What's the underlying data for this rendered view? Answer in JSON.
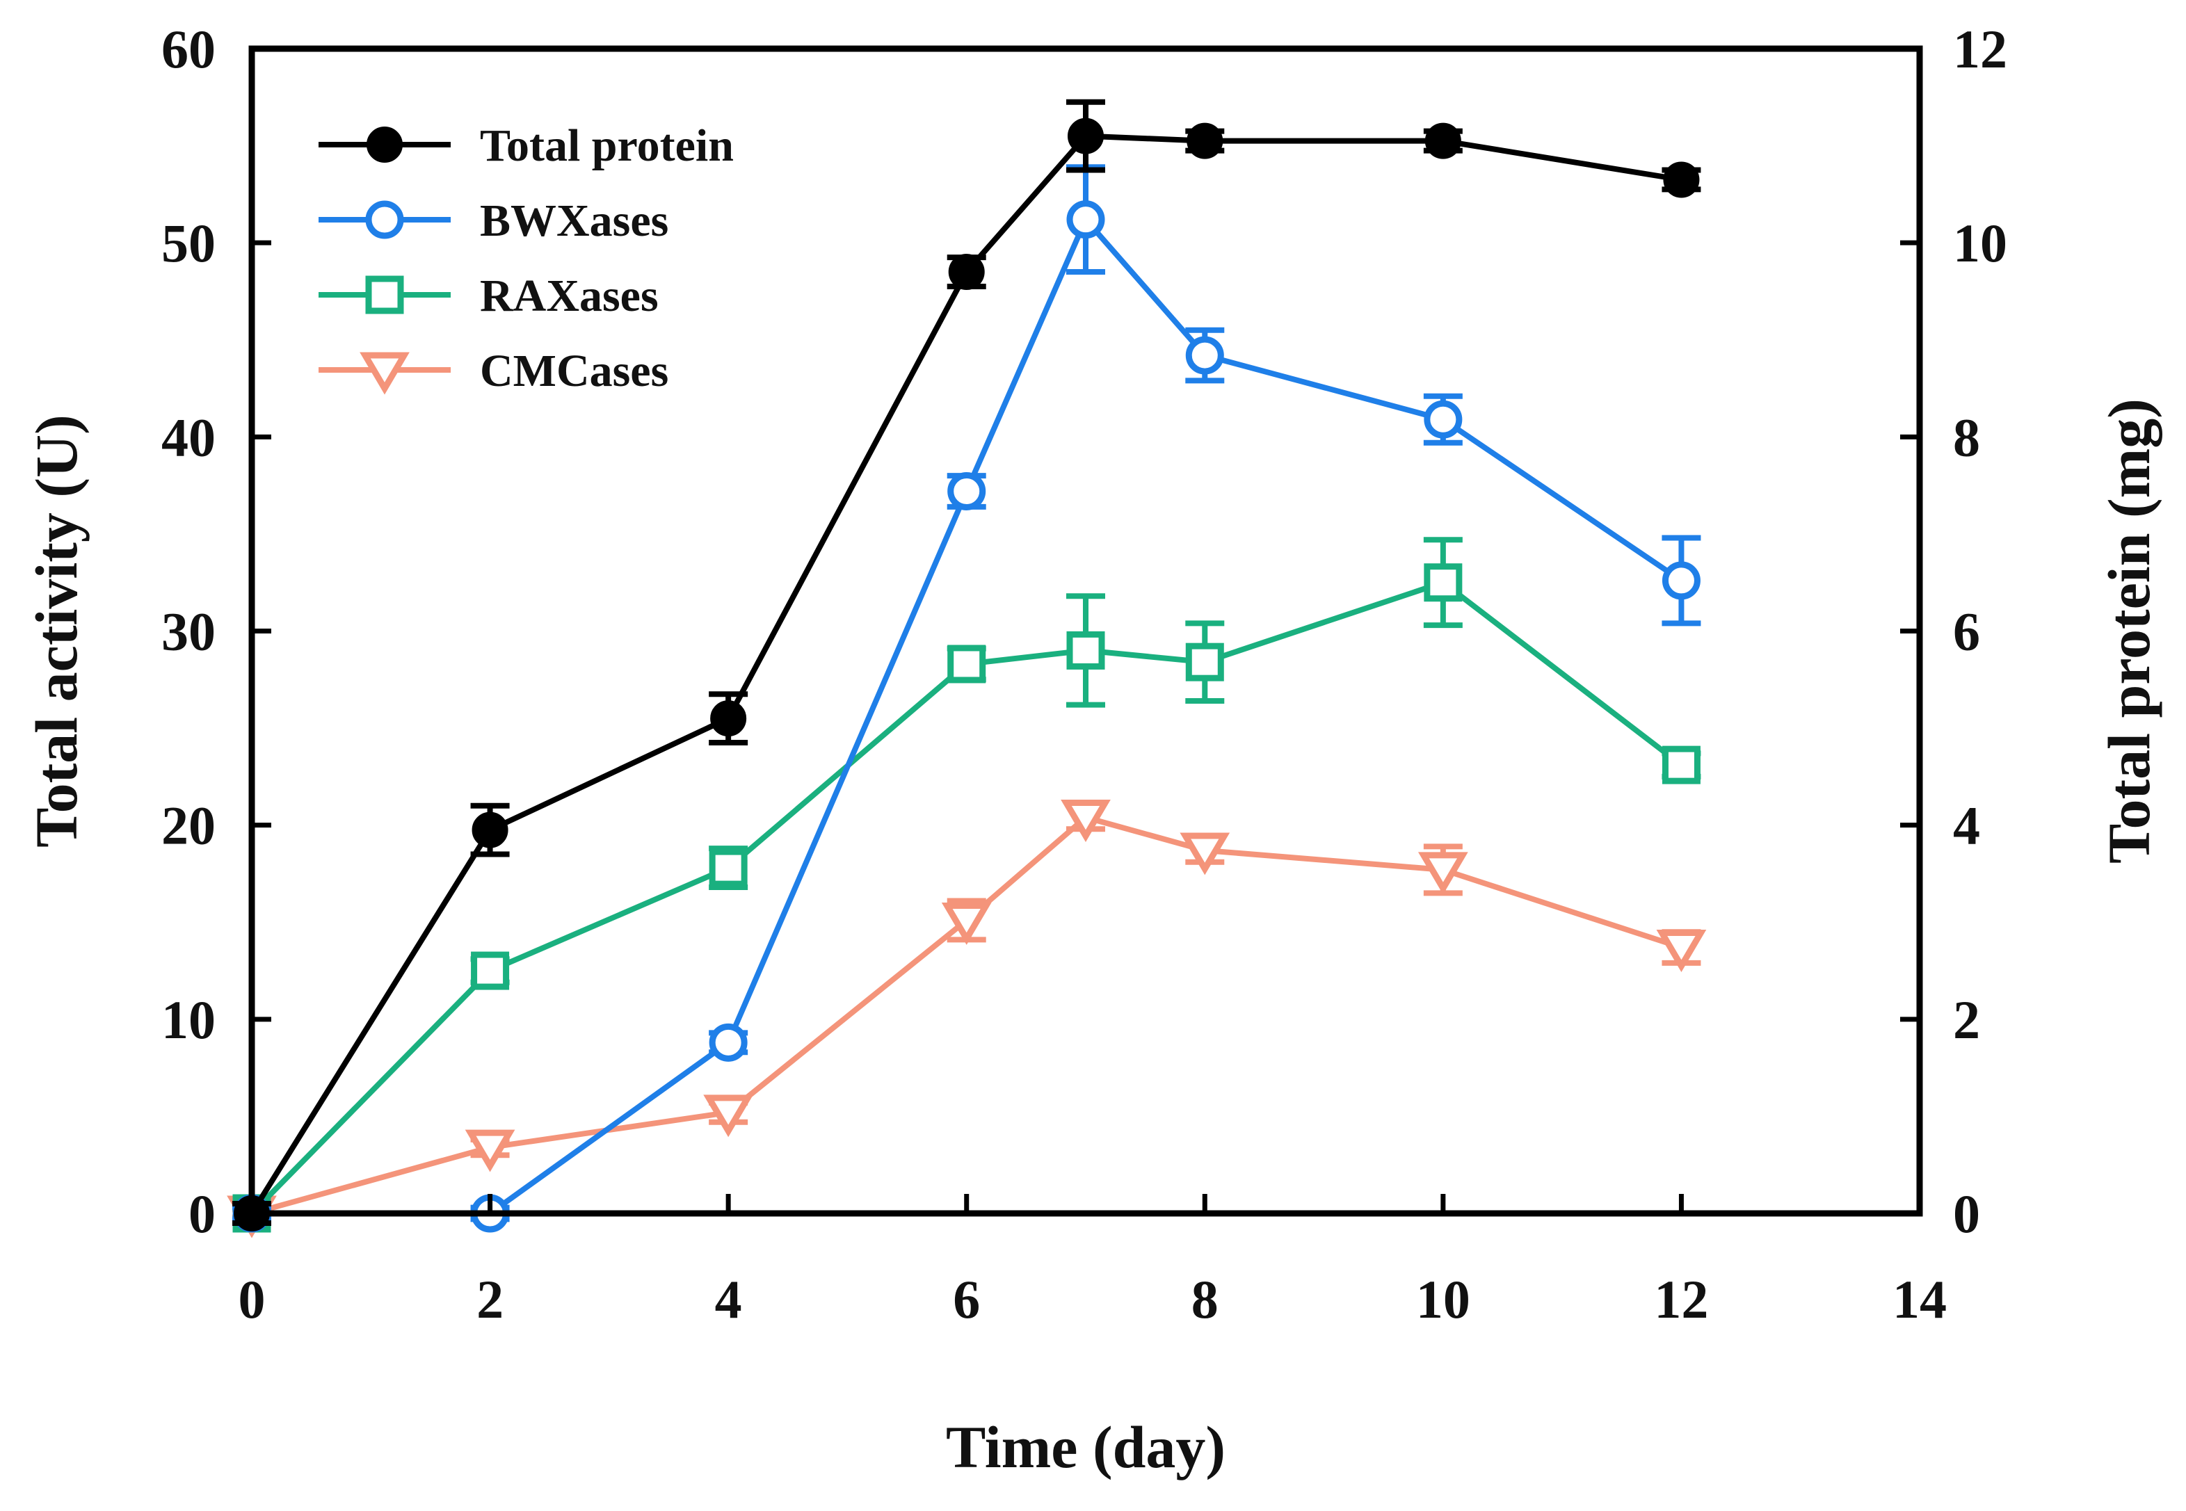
{
  "chart_data": {
    "type": "line",
    "title": "",
    "xlabel": "Time (day)",
    "ylabel": "Total activity (U)",
    "y2label": "Total protein (mg)",
    "xlim": [
      0,
      14
    ],
    "ylim": [
      0,
      60
    ],
    "y2lim": [
      0,
      12
    ],
    "xticks": [
      "0",
      "2",
      "4",
      "6",
      "8",
      "10",
      "12",
      "14"
    ],
    "yticks": [
      "0",
      "10",
      "20",
      "30",
      "40",
      "50",
      "60"
    ],
    "y2ticks": [
      "0",
      "2",
      "4",
      "6",
      "8",
      "10",
      "12"
    ],
    "grid": false,
    "legend_position": "top-left",
    "series": [
      {
        "name": "Total protein",
        "axis": "right",
        "marker": "filled-circle",
        "color": "#000000",
        "x": [
          0,
          2,
          4,
          6,
          7,
          8,
          10,
          12
        ],
        "values": [
          0,
          3.95,
          5.1,
          9.7,
          11.1,
          11.05,
          11.05,
          10.65
        ],
        "errors": [
          0.1,
          0.25,
          0.25,
          0.15,
          0.35,
          0.1,
          0.1,
          0.1
        ]
      },
      {
        "name": "BWXases",
        "axis": "left",
        "marker": "open-circle",
        "color": "#1f7fe8",
        "x": [
          0,
          2,
          4,
          6,
          7,
          8,
          10,
          12
        ],
        "values": [
          0,
          0,
          8.8,
          37.2,
          51.2,
          44.2,
          40.9,
          32.6
        ],
        "errors": [
          0.3,
          0.3,
          0.5,
          0.8,
          2.7,
          1.3,
          1.2,
          2.2
        ]
      },
      {
        "name": "RAXases",
        "axis": "left",
        "marker": "open-square",
        "color": "#1ab07f",
        "x": [
          0,
          2,
          4,
          6,
          7,
          8,
          10,
          12
        ],
        "values": [
          0,
          12.5,
          17.8,
          28.3,
          29.0,
          28.4,
          32.5,
          23.1
        ],
        "errors": [
          0.3,
          0.6,
          1.0,
          0.8,
          2.8,
          2.0,
          2.2,
          0.6
        ]
      },
      {
        "name": "CMCases",
        "axis": "left",
        "marker": "open-triangle-down",
        "color": "#f4947a",
        "x": [
          0,
          2,
          4,
          6,
          7,
          8,
          10,
          12
        ],
        "values": [
          0,
          3.4,
          5.2,
          15.1,
          20.4,
          18.7,
          17.7,
          13.7
        ],
        "errors": [
          0.2,
          0.4,
          0.5,
          1.0,
          0.6,
          0.6,
          1.2,
          0.8
        ]
      }
    ]
  }
}
